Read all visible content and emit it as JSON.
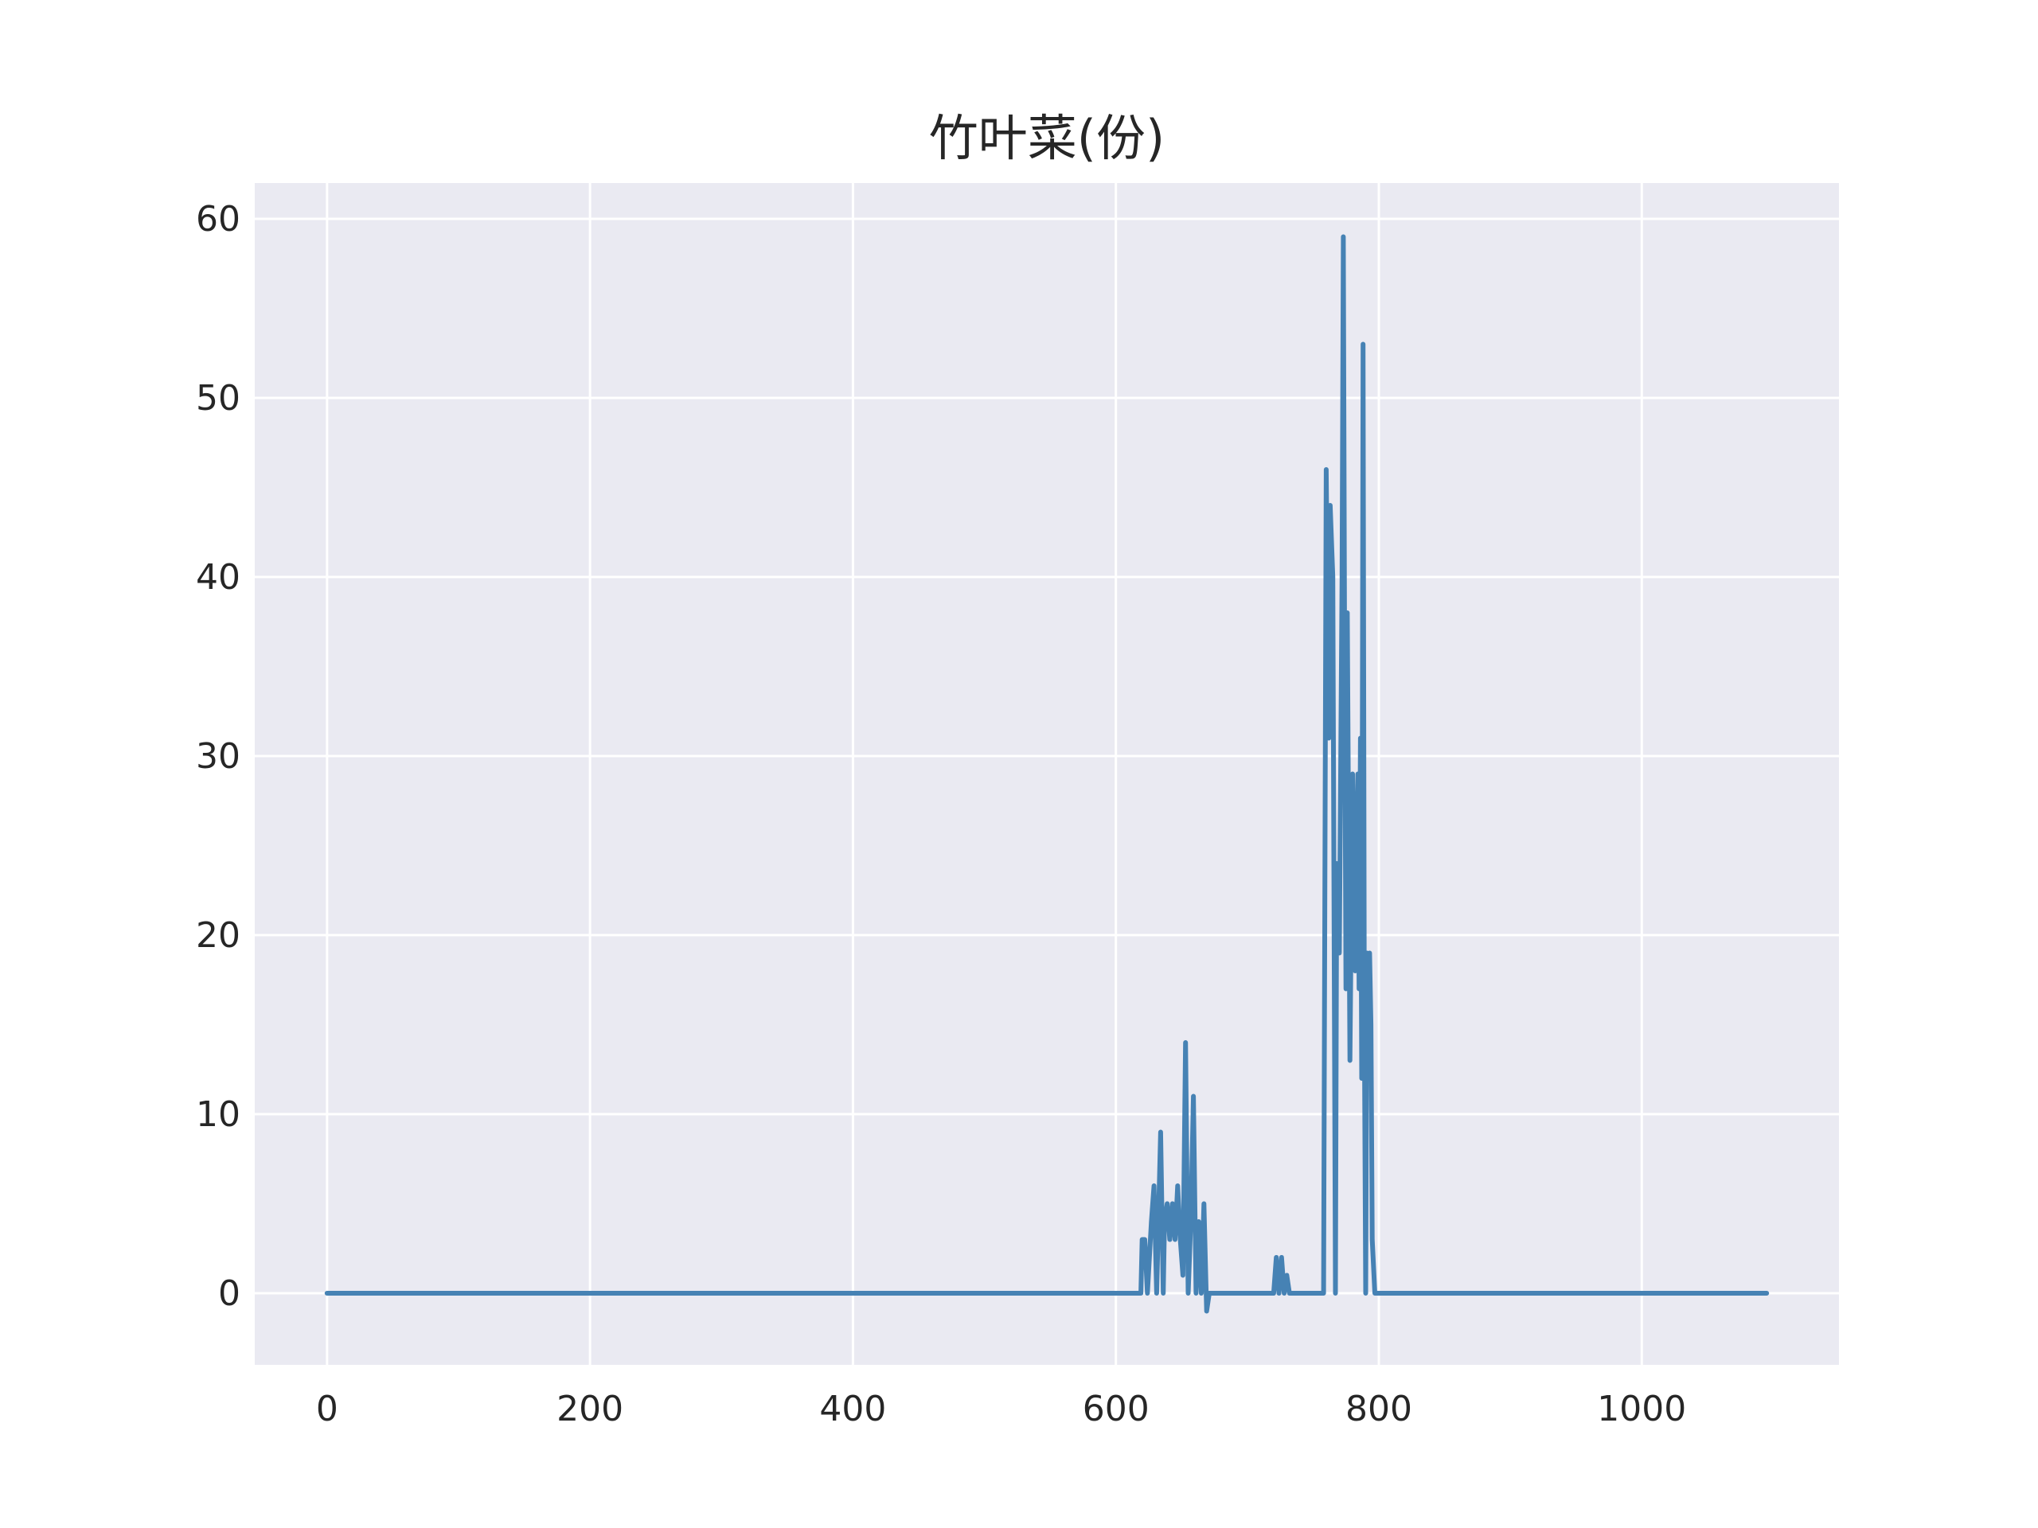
{
  "chart_data": {
    "type": "line",
    "title": "竹叶菜(份)",
    "xlabel": "",
    "ylabel": "",
    "xlim": [
      -55,
      1150
    ],
    "ylim": [
      -4,
      62
    ],
    "xticks": [
      0,
      200,
      400,
      600,
      800,
      1000
    ],
    "yticks": [
      0,
      10,
      20,
      30,
      40,
      50,
      60
    ],
    "grid": true,
    "legend": "none",
    "colors": {
      "line": "#4682b4",
      "plot_bg": "#eaeaf2",
      "grid": "#ffffff",
      "text": "#262626"
    },
    "series": [
      {
        "points": [
          [
            0,
            0
          ],
          [
            619,
            0
          ],
          [
            620,
            3
          ],
          [
            622,
            3
          ],
          [
            624,
            0
          ],
          [
            627,
            4
          ],
          [
            629,
            6
          ],
          [
            631,
            0
          ],
          [
            634,
            9
          ],
          [
            636,
            0
          ],
          [
            637,
            4
          ],
          [
            639,
            5
          ],
          [
            641,
            3
          ],
          [
            643,
            5
          ],
          [
            645,
            3
          ],
          [
            647,
            6
          ],
          [
            649,
            3
          ],
          [
            651,
            1
          ],
          [
            653,
            14
          ],
          [
            655,
            0
          ],
          [
            657,
            4
          ],
          [
            659,
            11
          ],
          [
            661,
            0
          ],
          [
            663,
            4
          ],
          [
            665,
            0
          ],
          [
            667,
            5
          ],
          [
            669,
            -1
          ],
          [
            671,
            0
          ],
          [
            720,
            0
          ],
          [
            722,
            2
          ],
          [
            724,
            0
          ],
          [
            726,
            2
          ],
          [
            728,
            0
          ],
          [
            730,
            1
          ],
          [
            732,
            0
          ],
          [
            758,
            0
          ],
          [
            760,
            46
          ],
          [
            762,
            31
          ],
          [
            763,
            44
          ],
          [
            765,
            40
          ],
          [
            767,
            0
          ],
          [
            768,
            24
          ],
          [
            770,
            19
          ],
          [
            772,
            40
          ],
          [
            773,
            59
          ],
          [
            774,
            35
          ],
          [
            775,
            17
          ],
          [
            776,
            38
          ],
          [
            778,
            13
          ],
          [
            780,
            29
          ],
          [
            782,
            18
          ],
          [
            784,
            29
          ],
          [
            785,
            17
          ],
          [
            786,
            31
          ],
          [
            787,
            12
          ],
          [
            788,
            53
          ],
          [
            789,
            15
          ],
          [
            790,
            0
          ],
          [
            791,
            19
          ],
          [
            792,
            17
          ],
          [
            793,
            19
          ],
          [
            794,
            15
          ],
          [
            795,
            3
          ],
          [
            797,
            0
          ],
          [
            1095,
            0
          ]
        ]
      }
    ]
  }
}
